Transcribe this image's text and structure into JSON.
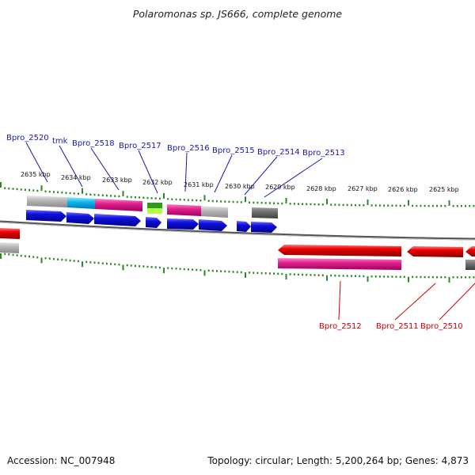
{
  "title": "Polaromonas sp. JS666, complete genome",
  "footer": {
    "accession": "Accession: NC_007948",
    "topology": "Topology: circular; Length: 5,200,264 bp; Genes: 4,873"
  },
  "kbp_labels": [
    "2635 kbp",
    "2634 kbp",
    "2633 kbp",
    "2632 kbp",
    "2631 kbp",
    "2630 kbp",
    "2629 kbp",
    "2628 kbp",
    "2627 kbp",
    "2626 kbp",
    "2625 kbp"
  ],
  "upper_gene_labels": [
    "Bpro_2520",
    "tmk",
    "Bpro_2518",
    "Bpro_2517",
    "Bpro_2516",
    "Bpro_2515",
    "Bpro_2514",
    "Bpro_2513"
  ],
  "lower_gene_labels": [
    "Bpro_2512",
    "Bpro_2511",
    "Bpro_2510"
  ],
  "colors": {
    "forward_gene": "#1010e0",
    "reverse_gene": "#ee0000",
    "magenta": "#e0208c",
    "cyan": "#10b8f0",
    "green": "#30a020",
    "lightgreen": "#b0ff40",
    "gray": "#b8b8b8",
    "darkgray": "#707070",
    "tick": "#2a8a2a"
  }
}
